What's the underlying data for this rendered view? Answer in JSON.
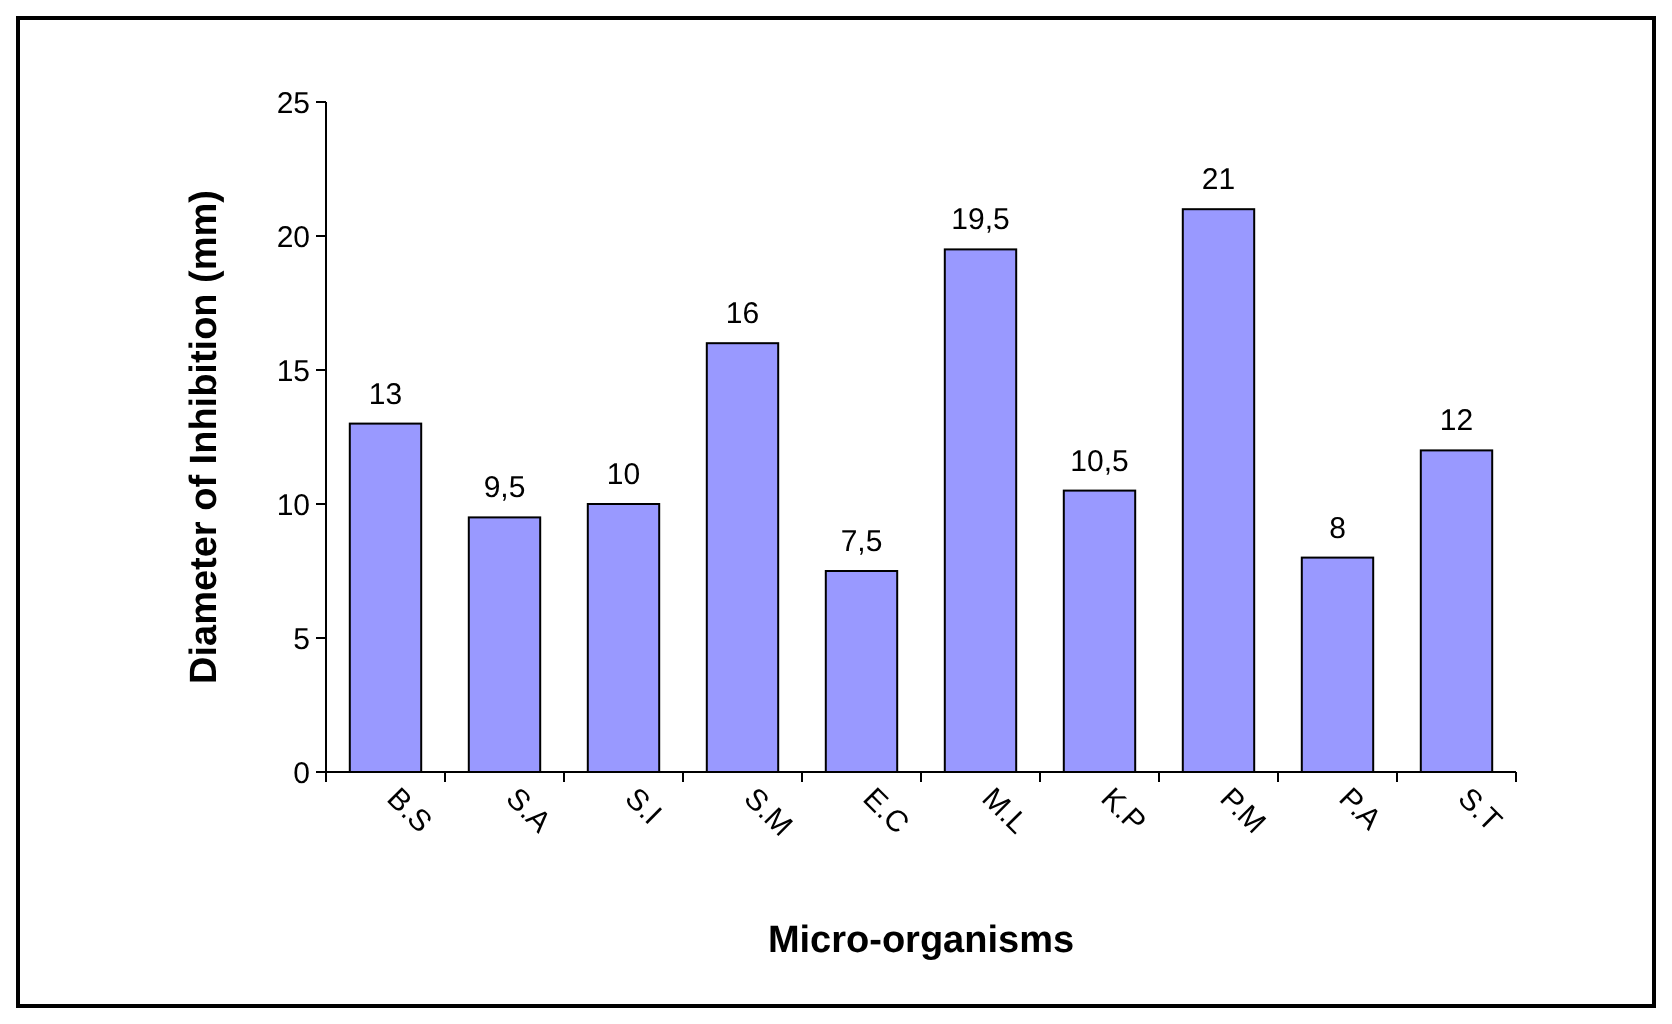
{
  "chart_data": {
    "type": "bar",
    "xlabel": "Micro-organisms",
    "ylabel": "Diameter of Inhibition (mm)",
    "categories": [
      "B.S",
      "S.A",
      "S.I",
      "S.M",
      "E.C",
      "M.L",
      "K.P",
      "P.M",
      "P.A",
      "S.T"
    ],
    "values": [
      13,
      9.5,
      10,
      16,
      7.5,
      19.5,
      10.5,
      21,
      8,
      12
    ],
    "value_labels": [
      "13",
      "9,5",
      "10",
      "16",
      "7,5",
      "19,5",
      "10,5",
      "21",
      "8",
      "12"
    ],
    "color": "#9999ff",
    "ylim": [
      0,
      25
    ],
    "yticks": [
      0,
      5,
      10,
      15,
      20,
      25
    ]
  }
}
